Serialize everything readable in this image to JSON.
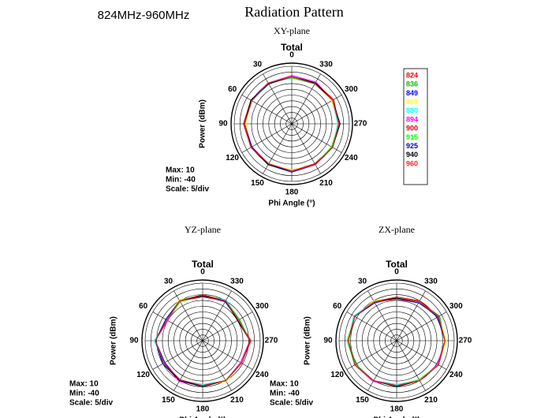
{
  "header": {
    "band": "824MHz-960MHz",
    "title": "Radiation Pattern"
  },
  "chart_data": [
    {
      "type": "polar",
      "subtitle": "XY-plane",
      "title": "Total",
      "xlabel": "Phi Angle (°)",
      "ylabel": "Power (dBm)",
      "notes": [
        "Max: 10",
        "Min: -40",
        "Scale: 5/div"
      ],
      "legend": "right",
      "theta": [
        0,
        30,
        60,
        90,
        120,
        150,
        180,
        210,
        240,
        270,
        300,
        330
      ],
      "rlim": [
        -40,
        10
      ],
      "rticks": [
        -40,
        -35,
        -30,
        -25,
        -20,
        -15,
        -10,
        -5,
        0,
        5,
        10
      ],
      "series": [
        {
          "name": "824",
          "color": "#ff0000",
          "values": [
            1,
            1,
            0,
            1,
            1,
            0,
            1,
            1,
            0,
            1,
            1,
            1
          ]
        },
        {
          "name": "836",
          "color": "#00c000",
          "values": [
            1,
            0,
            1,
            1,
            0,
            1,
            1,
            1,
            0,
            1,
            1,
            1
          ]
        },
        {
          "name": "849",
          "color": "#0000ff",
          "values": [
            0,
            1,
            1,
            1,
            0,
            1,
            1,
            0,
            1,
            1,
            1,
            0
          ]
        },
        {
          "name": "869",
          "color": "#ffff00",
          "values": [
            1,
            1,
            1,
            0,
            1,
            1,
            0,
            1,
            1,
            1,
            0,
            1
          ]
        },
        {
          "name": "880",
          "color": "#00ffff",
          "values": [
            1,
            0,
            0,
            1,
            1,
            1,
            1,
            1,
            1,
            0,
            1,
            1
          ]
        },
        {
          "name": "894",
          "color": "#ff00ff",
          "values": [
            2,
            1,
            1,
            1,
            0,
            0,
            1,
            1,
            1,
            1,
            1,
            2
          ]
        },
        {
          "name": "900",
          "color": "#e00000",
          "values": [
            1,
            1,
            1,
            2,
            1,
            0,
            1,
            0,
            1,
            1,
            2,
            1
          ]
        },
        {
          "name": "915",
          "color": "#00ff00",
          "values": [
            0,
            1,
            0,
            1,
            1,
            1,
            1,
            1,
            0,
            1,
            1,
            0
          ]
        },
        {
          "name": "925",
          "color": "#0000c0",
          "values": [
            1,
            1,
            1,
            1,
            0,
            1,
            2,
            1,
            1,
            1,
            1,
            1
          ]
        },
        {
          "name": "940",
          "color": "#000000",
          "values": [
            1,
            0,
            1,
            1,
            1,
            1,
            1,
            1,
            1,
            2,
            1,
            1
          ]
        },
        {
          "name": "960",
          "color": "#ff2020",
          "values": [
            1,
            1,
            0,
            1,
            1,
            0,
            1,
            1,
            1,
            1,
            1,
            0
          ]
        }
      ]
    },
    {
      "type": "polar",
      "subtitle": "YZ-plane",
      "title": "Total",
      "xlabel": "Phi Angle (°)",
      "ylabel": "Power (dBm)",
      "notes": [
        "Max: 10",
        "Min: -40",
        "Scale: 5/div"
      ],
      "theta": [
        0,
        30,
        60,
        90,
        120,
        150,
        180,
        210,
        240,
        270,
        300,
        330
      ],
      "rlim": [
        -40,
        10
      ],
      "rticks": [
        -40,
        -35,
        -30,
        -25,
        -20,
        -15,
        -10,
        -5,
        0,
        5,
        10
      ],
      "series": [
        {
          "color": "#ff0000",
          "values": [
            -1,
            0,
            -4,
            1,
            -1,
            0,
            -1,
            0,
            -1,
            1,
            -4,
            0
          ]
        },
        {
          "color": "#00c000",
          "values": [
            -1,
            0,
            -3,
            1,
            -1,
            0,
            -1,
            0,
            -1,
            1,
            -4,
            0
          ]
        },
        {
          "color": "#0000ff",
          "values": [
            -2,
            0,
            -4,
            1,
            -2,
            0,
            -1,
            0,
            -1,
            1,
            -3,
            0
          ]
        },
        {
          "color": "#ffff00",
          "values": [
            -1,
            1,
            -4,
            1,
            -1,
            0,
            -1,
            1,
            -1,
            1,
            -4,
            0
          ]
        },
        {
          "color": "#00ffff",
          "values": [
            -1,
            0,
            -4,
            2,
            -1,
            0,
            -2,
            0,
            -1,
            1,
            -4,
            1
          ]
        },
        {
          "color": "#ff00ff",
          "values": [
            -1,
            0,
            -5,
            1,
            -1,
            1,
            -1,
            0,
            -2,
            1,
            -4,
            0
          ]
        },
        {
          "color": "#e00000",
          "values": [
            0,
            0,
            -4,
            1,
            -1,
            0,
            -1,
            0,
            -1,
            2,
            -4,
            0
          ]
        },
        {
          "color": "#00ff00",
          "values": [
            -1,
            -1,
            -4,
            1,
            -1,
            0,
            -1,
            0,
            -1,
            1,
            -3,
            0
          ]
        },
        {
          "color": "#0000c0",
          "values": [
            -1,
            0,
            -3,
            1,
            0,
            0,
            -1,
            0,
            -1,
            1,
            -4,
            -1
          ]
        },
        {
          "color": "#000000",
          "values": [
            -1,
            0,
            -4,
            1,
            -1,
            0,
            0,
            0,
            -1,
            1,
            -5,
            0
          ]
        },
        {
          "color": "#ff2020",
          "values": [
            -2,
            0,
            -4,
            1,
            -1,
            -1,
            -1,
            0,
            -1,
            1,
            -4,
            0
          ]
        }
      ]
    },
    {
      "type": "polar",
      "subtitle": "ZX-plane",
      "title": "Total",
      "xlabel": "Phi Angle (°)",
      "ylabel": "Power (dBm)",
      "notes": [
        "Max: 10",
        "Min: -40",
        "Scale: 5/div"
      ],
      "theta": [
        0,
        30,
        60,
        90,
        120,
        150,
        180,
        210,
        240,
        270,
        300,
        330
      ],
      "rlim": [
        -40,
        10
      ],
      "rticks": [
        -40,
        -35,
        -30,
        -25,
        -20,
        -15,
        -10,
        -5,
        0,
        5,
        10
      ],
      "series": [
        {
          "color": "#ff0000",
          "values": [
            -3,
            -1,
            2,
            2,
            2,
            0,
            -1,
            0,
            2,
            2,
            2,
            -1
          ]
        },
        {
          "color": "#00c000",
          "values": [
            -3,
            -1,
            2,
            2,
            1,
            0,
            -1,
            0,
            2,
            2,
            3,
            -1
          ]
        },
        {
          "color": "#0000ff",
          "values": [
            -4,
            -1,
            2,
            2,
            2,
            0,
            -1,
            0,
            2,
            2,
            2,
            -2
          ]
        },
        {
          "color": "#ffff00",
          "values": [
            -3,
            0,
            2,
            2,
            2,
            0,
            -1,
            0,
            2,
            3,
            2,
            -1
          ]
        },
        {
          "color": "#00ffff",
          "values": [
            -3,
            -1,
            3,
            2,
            2,
            0,
            -2,
            0,
            2,
            2,
            2,
            -1
          ]
        },
        {
          "color": "#ff00ff",
          "values": [
            -3,
            -1,
            2,
            2,
            2,
            1,
            -1,
            0,
            1,
            2,
            2,
            -1
          ]
        },
        {
          "color": "#e00000",
          "values": [
            -2,
            -1,
            2,
            2,
            2,
            0,
            -1,
            0,
            2,
            2,
            2,
            0
          ]
        },
        {
          "color": "#00ff00",
          "values": [
            -3,
            -1,
            2,
            3,
            2,
            0,
            -1,
            -1,
            2,
            2,
            2,
            -1
          ]
        },
        {
          "color": "#0000c0",
          "values": [
            -3,
            -2,
            2,
            2,
            2,
            0,
            -1,
            0,
            2,
            2,
            1,
            -1
          ]
        },
        {
          "color": "#000000",
          "values": [
            -3,
            -1,
            2,
            2,
            2,
            0,
            0,
            0,
            2,
            2,
            2,
            -1
          ]
        },
        {
          "color": "#ff2020",
          "values": [
            -4,
            -1,
            2,
            2,
            2,
            0,
            -1,
            0,
            2,
            2,
            2,
            -1
          ]
        }
      ]
    }
  ]
}
